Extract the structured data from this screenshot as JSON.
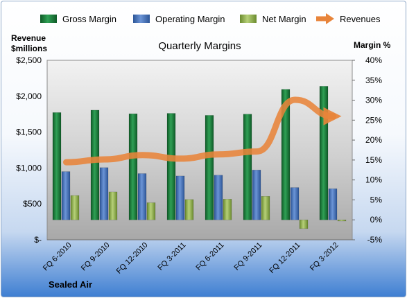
{
  "chart_data": {
    "type": "bar",
    "title": "Quarterly Margins",
    "categories": [
      "FQ 6-2010",
      "FQ 9-2010",
      "FQ 12-2010",
      "FQ 3-2011",
      "FQ 6-2011",
      "FQ 9-2011",
      "FQ 12-2011",
      "FQ 3-2012"
    ],
    "series": [
      {
        "name": "Gross Margin",
        "axis": "right",
        "kind": "bar",
        "color": "#1e7a3c",
        "values": [
          26.9,
          27.5,
          26.6,
          26.7,
          26.2,
          26.5,
          32.7,
          33.5
        ]
      },
      {
        "name": "Operating Margin",
        "axis": "right",
        "kind": "bar",
        "color": "#3f6db3",
        "values": [
          12.1,
          13.1,
          11.6,
          11.0,
          11.2,
          12.5,
          8.1,
          7.8
        ]
      },
      {
        "name": "Net Margin",
        "axis": "right",
        "kind": "bar",
        "color": "#8aa84a",
        "values": [
          6.1,
          7.0,
          4.3,
          5.1,
          5.2,
          5.9,
          -2.2,
          -0.3
        ]
      },
      {
        "name": "Revenues",
        "axis": "left",
        "kind": "line",
        "color": "#e8843a",
        "values": [
          1080,
          1120,
          1180,
          1130,
          1190,
          1230,
          1950,
          1720
        ]
      }
    ],
    "y_left": {
      "label_line1": "Revenue",
      "label_line2": "$millions",
      "min": 0,
      "max": 2500,
      "ticks": [
        "$-",
        "$500",
        "$1,000",
        "$1,500",
        "$2,000",
        "$2,500"
      ]
    },
    "y_right": {
      "label": "Margin %",
      "min": -5,
      "max": 40,
      "ticks": [
        "-5%",
        "0%",
        "5%",
        "10%",
        "15%",
        "20%",
        "25%",
        "30%",
        "35%",
        "40%"
      ]
    },
    "legend_position": "top",
    "grid": false,
    "footer": "Sealed Air",
    "colors": {
      "plot_area": "#bfbfbf",
      "plot_border": "#8c8c8c"
    }
  }
}
